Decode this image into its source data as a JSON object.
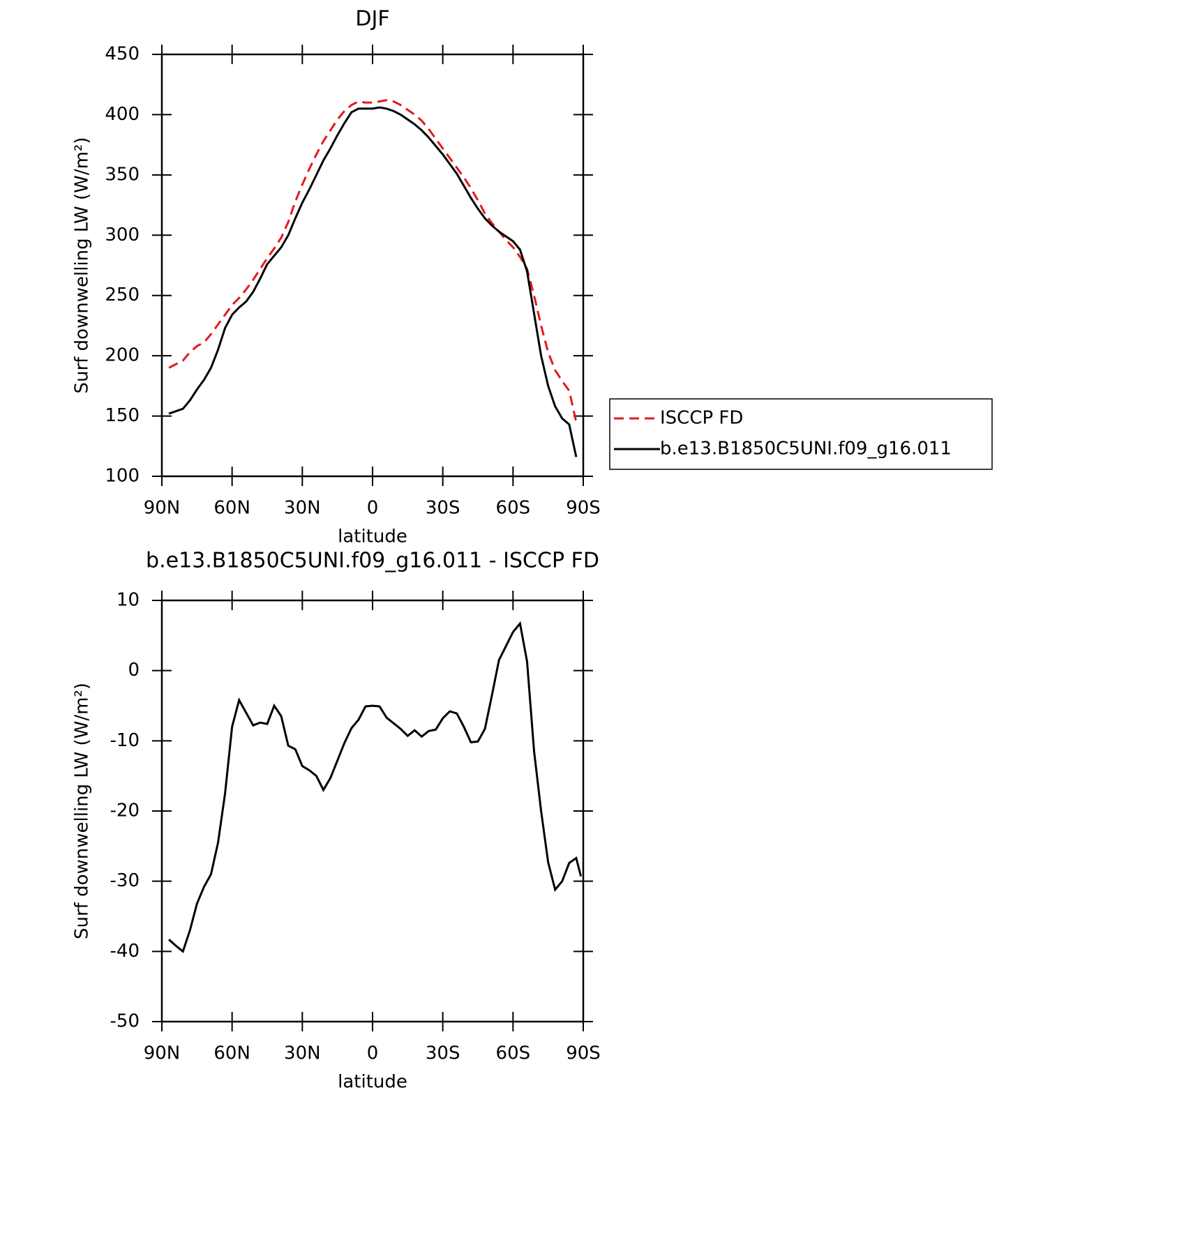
{
  "chart_data": [
    {
      "type": "line",
      "title": "DJF",
      "xlabel": "latitude",
      "ylabel": "Surf downwelling LW (W/m²)",
      "x": [
        87,
        84,
        81,
        78,
        75,
        72,
        69,
        66,
        63,
        60,
        57,
        54,
        51,
        48,
        45,
        42,
        39,
        36,
        33,
        30,
        27,
        24,
        21,
        18,
        15,
        12,
        9,
        6,
        3,
        0,
        -3,
        -6,
        -9,
        -12,
        -15,
        -18,
        -21,
        -24,
        -27,
        -30,
        -33,
        -36,
        -39,
        -42,
        -45,
        -48,
        -51,
        -54,
        -57,
        -60,
        -63,
        -66,
        -69,
        -72,
        -75,
        -78,
        -81,
        -84,
        -87
      ],
      "series": [
        {
          "name": "ISCCP FD",
          "color": "#e41a1c",
          "dashed": true,
          "values": [
            190,
            193,
            196,
            203,
            208,
            211,
            218,
            226,
            234,
            242,
            248,
            255,
            263,
            272,
            281,
            289,
            298,
            311,
            328,
            342,
            355,
            367,
            378,
            387,
            396,
            403,
            408,
            411,
            410,
            410,
            411,
            412,
            411,
            408,
            404,
            400,
            395,
            388,
            380,
            372,
            364,
            356,
            348,
            339,
            329,
            318,
            310,
            303,
            296,
            290,
            282,
            272,
            250,
            225,
            203,
            188,
            179,
            171,
            145
          ]
        },
        {
          "name": "b.e13.B1850C5UNI.f09_g16.011",
          "color": "#000000",
          "dashed": false,
          "values": [
            152,
            154,
            156,
            163,
            172,
            180,
            190,
            205,
            223,
            234,
            240,
            245,
            253,
            264,
            276,
            283,
            290,
            300,
            314,
            327,
            338,
            350,
            362,
            372,
            383,
            393,
            402,
            405,
            405,
            405,
            406,
            405,
            403,
            400,
            396,
            392,
            387,
            381,
            374,
            367,
            359,
            351,
            341,
            331,
            322,
            314,
            308,
            303,
            299,
            295,
            288,
            270,
            235,
            200,
            175,
            158,
            148,
            143,
            116
          ]
        }
      ],
      "xlim": [
        90,
        -90
      ],
      "xticks": [
        {
          "value": 90,
          "label": "90N"
        },
        {
          "value": 60,
          "label": "60N"
        },
        {
          "value": 30,
          "label": "30N"
        },
        0,
        {
          "value": -30,
          "label": "30S"
        },
        {
          "value": -60,
          "label": "60S"
        },
        {
          "value": -90,
          "label": "90S"
        }
      ],
      "ylim": [
        100,
        450
      ],
      "yticks": [
        100,
        150,
        200,
        250,
        300,
        350,
        400,
        450
      ],
      "legend": "right"
    },
    {
      "type": "line",
      "title": "b.e13.B1850C5UNI.f09_g16.011 - ISCCP FD",
      "xlabel": "latitude",
      "ylabel": "Surf downwelling LW (W/m²)",
      "x": [
        87,
        84,
        81,
        78,
        75,
        72,
        69,
        66,
        63,
        60,
        57,
        54,
        51,
        48,
        45,
        42,
        39,
        36,
        33,
        30,
        27,
        24,
        21,
        18,
        15,
        12,
        9,
        6,
        3,
        0,
        -3,
        -6,
        -9,
        -12,
        -15,
        -18,
        -21,
        -24,
        -27,
        -30,
        -33,
        -36,
        -39,
        -42,
        -45,
        -48,
        -51,
        -54,
        -57,
        -60,
        -63,
        -66,
        -69,
        -72,
        -75,
        -78,
        -81,
        -84,
        -87,
        -89
      ],
      "values": [
        -38.3,
        -39.2,
        -40,
        -37,
        -33.2,
        -30.8,
        -29,
        -24.5,
        -17.5,
        -8,
        -4.2,
        -6,
        -7.8,
        -7.4,
        -7.6,
        -5,
        -6.5,
        -10.7,
        -11.2,
        -13.6,
        -14.2,
        -15,
        -17,
        -15.3,
        -12.8,
        -10.3,
        -8.2,
        -7,
        -5.1,
        -5,
        -5.1,
        -6.7,
        -7.5,
        -8.3,
        -9.3,
        -8.5,
        -9.4,
        -8.6,
        -8.4,
        -6.8,
        -5.8,
        -6.1,
        -8,
        -10.2,
        -10.1,
        -8.3,
        -3.5,
        1.5,
        3.5,
        5.5,
        6.7,
        1.3,
        -11.5,
        -20,
        -27.3,
        -31.2,
        -30,
        -27.4,
        -26.7,
        -29.3
      ],
      "color": "#000000",
      "xlim": [
        90,
        -90
      ],
      "xticks": [
        {
          "value": 90,
          "label": "90N"
        },
        {
          "value": 60,
          "label": "60N"
        },
        {
          "value": 30,
          "label": "30N"
        },
        0,
        {
          "value": -30,
          "label": "30S"
        },
        {
          "value": -60,
          "label": "60S"
        },
        {
          "value": -90,
          "label": "90S"
        }
      ],
      "ylim": [
        -50,
        10
      ],
      "yticks": [
        -50,
        -40,
        -30,
        -20,
        -10,
        0,
        10
      ]
    }
  ]
}
